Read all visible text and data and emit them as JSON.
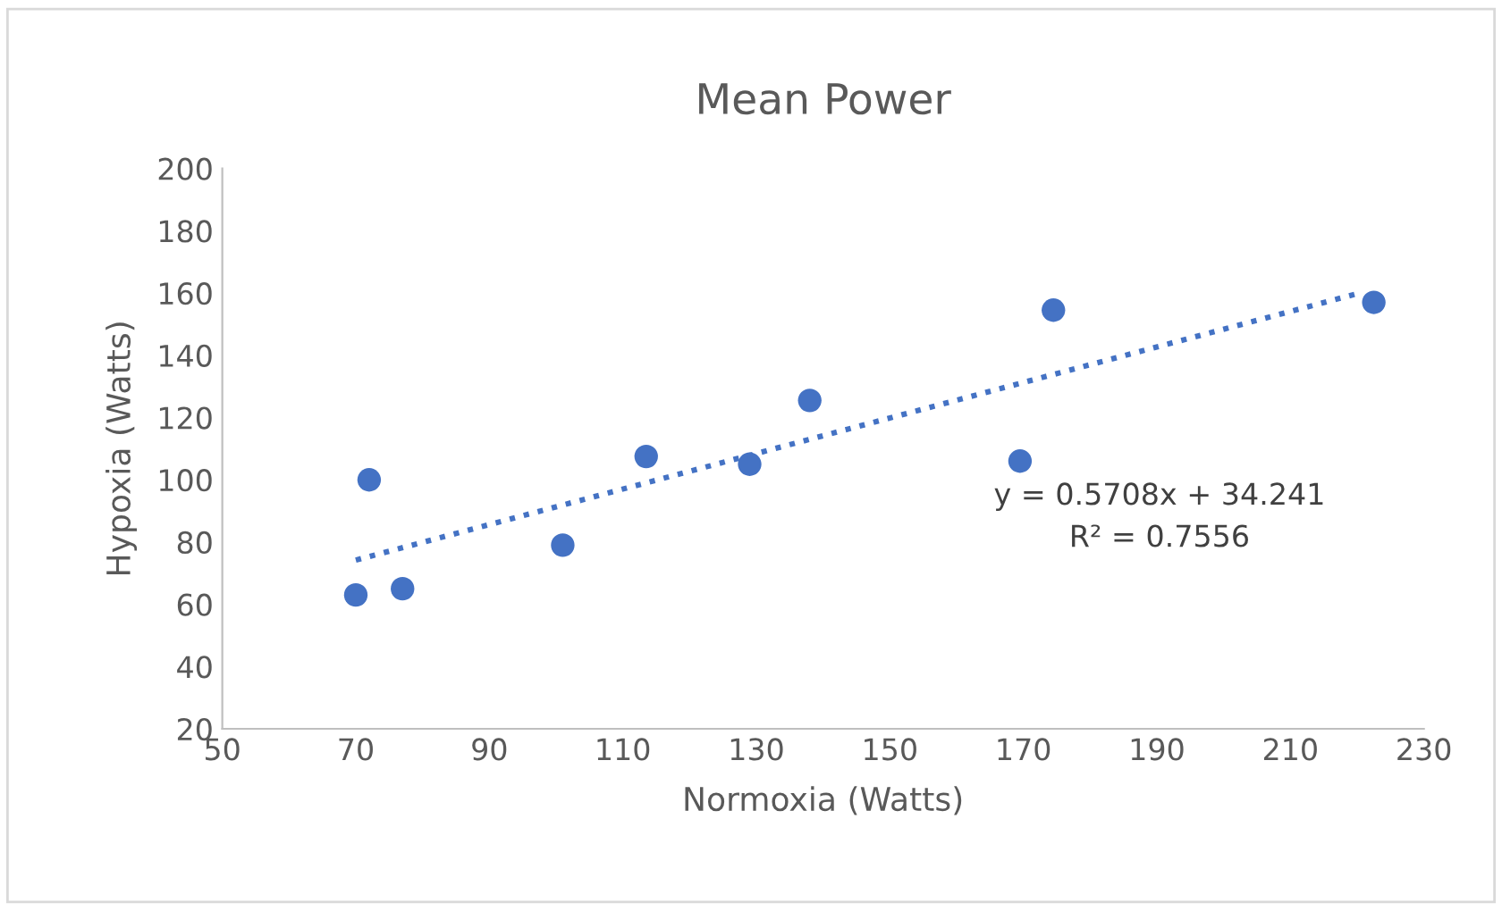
{
  "chart_data": {
    "type": "scatter",
    "title": "Mean Power",
    "xlabel": "Normoxia (Watts)",
    "ylabel": "Hypoxia (Watts)",
    "xlim": [
      50,
      230
    ],
    "xticks": [
      50,
      70,
      90,
      110,
      130,
      150,
      170,
      190,
      210,
      230
    ],
    "ylim": [
      20,
      200
    ],
    "yticks": [
      20,
      40,
      60,
      80,
      100,
      120,
      140,
      160,
      180,
      200
    ],
    "grid": false,
    "legend": false,
    "marker": "circle",
    "series": [
      {
        "color": "#4472c4",
        "x": [
          70,
          72,
          77,
          101,
          113.5,
          129,
          138,
          169.5,
          174.5,
          222.5
        ],
        "values": [
          63,
          100,
          65,
          79,
          107.5,
          105,
          125.5,
          106,
          154.5,
          157
        ]
      },
      {
        "type": "line",
        "color": "#4472c4",
        "line_style": "dotted",
        "marker": "none",
        "x": [
          70,
          220
        ],
        "values": [
          74.2,
          159.8
        ]
      }
    ],
    "annotations": [
      "y = 0.5708x + 34.241",
      "R² = 0.7556"
    ]
  }
}
